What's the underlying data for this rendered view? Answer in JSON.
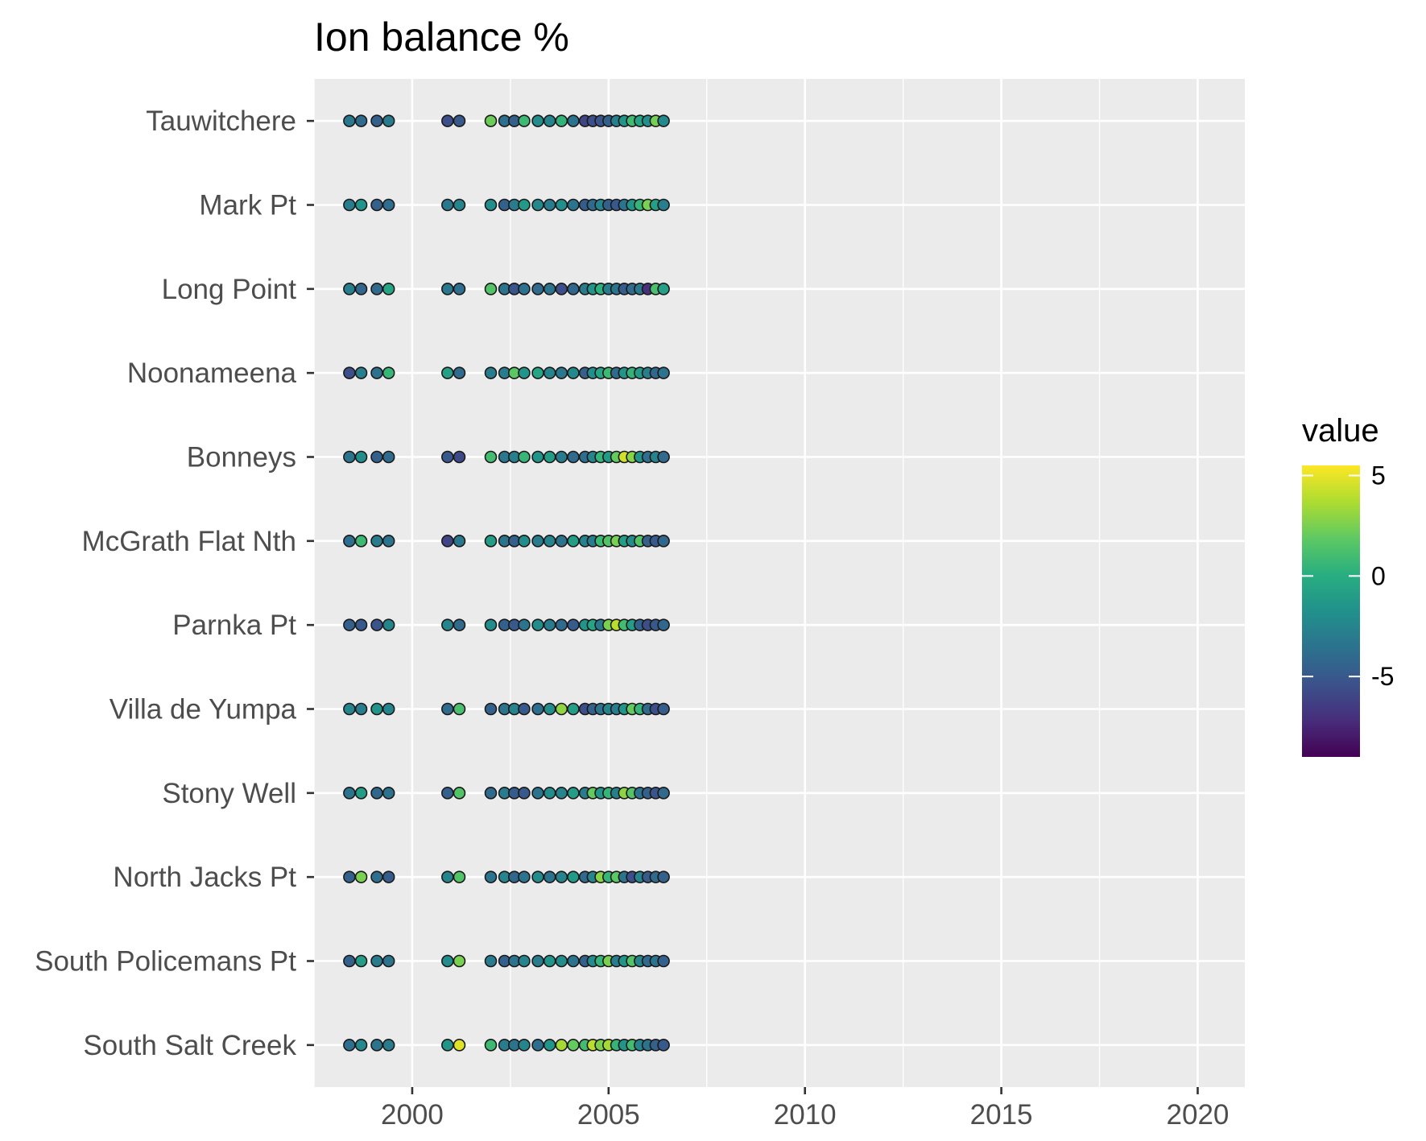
{
  "chart_data": {
    "type": "scatter",
    "title": "Ion balance %",
    "xlabel": "",
    "ylabel": "",
    "xlim": [
      1997.5,
      2021.2
    ],
    "x_ticks": [
      2000,
      2005,
      2010,
      2015,
      2020
    ],
    "x_tick_labels": [
      "2000",
      "2005",
      "2010",
      "2015",
      "2020"
    ],
    "categories": [
      "Tauwitchere",
      "Mark Pt",
      "Long Point",
      "Noonameena",
      "Bonneys",
      "McGrath Flat Nth",
      "Parnka Pt",
      "Villa de Yumpa",
      "Stony Well",
      "North Jacks Pt",
      "South Policemans Pt",
      "South Salt Creek"
    ],
    "grid": true,
    "legend": {
      "title": "value",
      "position": "right",
      "palette": "viridis",
      "min": -9,
      "max": 5.5,
      "ticks": [
        5,
        0,
        -5
      ],
      "tick_labels": [
        "5",
        "0",
        "-5"
      ]
    },
    "colors": {
      "panel_background": "#ebebeb",
      "gridline": "#ffffff",
      "point_outline": "#1a1a1a"
    },
    "x": [
      1998.4,
      1998.7,
      1999.1,
      1999.4,
      2000.9,
      2001.2,
      2002.0,
      2002.35,
      2002.6,
      2002.85,
      2003.2,
      2003.5,
      2003.8,
      2004.1,
      2004.4,
      2004.6,
      2004.8,
      2005.0,
      2005.2,
      2005.4,
      2005.6,
      2005.8,
      2006.0,
      2006.2,
      2006.4
    ],
    "series": [
      {
        "category": "Tauwitchere",
        "values": [
          -3.2,
          -4.0,
          -4.5,
          -3.0,
          -5.5,
          -5.0,
          2.2,
          -3.8,
          -4.6,
          0.8,
          -2.0,
          -2.5,
          0.4,
          -3.5,
          -6.0,
          -5.5,
          -5.2,
          -4.5,
          -2.8,
          -1.5,
          0.9,
          -0.6,
          -1.8,
          2.4,
          -2.2
        ]
      },
      {
        "category": "Mark Pt",
        "values": [
          -3.0,
          -1.5,
          -4.5,
          -3.8,
          -3.2,
          -2.5,
          -2.0,
          -4.5,
          -3.0,
          -1.2,
          -2.2,
          -3.0,
          -1.8,
          -3.5,
          -4.8,
          -4.0,
          -2.5,
          -4.5,
          -5.0,
          -3.5,
          -1.5,
          0.5,
          2.5,
          -0.8,
          -2.8
        ]
      },
      {
        "category": "Long Point",
        "values": [
          -2.8,
          -4.2,
          -4.0,
          -0.5,
          -3.2,
          -3.8,
          1.5,
          -3.5,
          -5.2,
          -3.6,
          -4.0,
          -3.5,
          -5.5,
          -4.2,
          -3.0,
          -1.5,
          0.2,
          -2.8,
          -3.5,
          -4.8,
          -4.0,
          -3.2,
          -7.0,
          1.2,
          -0.8
        ]
      },
      {
        "category": "Noonameena",
        "values": [
          -5.5,
          -2.8,
          -3.6,
          0.6,
          -0.8,
          -4.0,
          -3.0,
          -3.0,
          1.8,
          -1.5,
          -0.5,
          -2.5,
          -3.2,
          -2.2,
          -4.5,
          -1.8,
          -0.6,
          0.8,
          -4.0,
          -1.5,
          0.4,
          -1.2,
          -2.8,
          -4.2,
          -3.5
        ]
      },
      {
        "category": "Bonneys",
        "values": [
          -3.5,
          -2.0,
          -4.5,
          -4.0,
          -5.0,
          -5.8,
          1.0,
          -3.2,
          -2.8,
          0.6,
          -1.5,
          -1.0,
          -3.0,
          -4.0,
          -3.8,
          -2.5,
          0.5,
          -1.2,
          2.0,
          4.5,
          2.8,
          -1.5,
          -3.8,
          -2.5,
          -4.0
        ]
      },
      {
        "category": "McGrath Flat Nth",
        "values": [
          -3.8,
          0.8,
          -3.0,
          -3.5,
          -6.0,
          -3.2,
          -1.0,
          -3.5,
          -4.5,
          -2.0,
          -3.0,
          -2.5,
          -3.5,
          -1.0,
          -2.5,
          -3.0,
          0.8,
          1.5,
          2.5,
          -1.0,
          -2.0,
          1.5,
          -4.5,
          -5.0,
          -4.2
        ]
      },
      {
        "category": "Parnka Pt",
        "values": [
          -4.5,
          -5.0,
          -5.2,
          -2.5,
          -2.5,
          -4.0,
          -2.0,
          -4.5,
          -5.0,
          -3.5,
          -2.0,
          -3.0,
          -4.0,
          -4.8,
          -1.5,
          -0.5,
          -3.2,
          2.5,
          4.0,
          1.0,
          -1.0,
          -4.5,
          -5.5,
          -5.0,
          -4.2
        ]
      },
      {
        "category": "Villa de Yumpa",
        "values": [
          -2.5,
          -3.0,
          -1.5,
          -2.5,
          -4.0,
          1.2,
          -4.5,
          -3.5,
          -2.5,
          -5.0,
          -3.8,
          -2.0,
          3.0,
          -1.0,
          -5.5,
          -4.5,
          -3.5,
          -2.5,
          -3.0,
          -1.5,
          2.0,
          0.5,
          -4.0,
          -5.5,
          -4.8
        ]
      },
      {
        "category": "Stony Well",
        "values": [
          -3.5,
          -1.0,
          -4.2,
          -3.6,
          -4.5,
          1.5,
          -4.0,
          -3.0,
          -4.8,
          -5.0,
          -3.5,
          -2.0,
          -2.5,
          -1.0,
          -3.0,
          2.0,
          -1.5,
          0.5,
          -2.8,
          3.0,
          1.5,
          -3.5,
          -4.5,
          -5.2,
          -4.0
        ]
      },
      {
        "category": "North Jacks Pt",
        "values": [
          -4.5,
          2.5,
          -3.8,
          -4.8,
          -2.5,
          1.5,
          -3.5,
          -2.5,
          -4.2,
          -3.5,
          -2.0,
          -3.5,
          -2.5,
          -1.2,
          -4.0,
          -2.5,
          2.8,
          0.5,
          1.8,
          -3.5,
          -5.5,
          -2.5,
          -4.8,
          -4.0,
          -4.5
        ]
      },
      {
        "category": "South Policemans Pt",
        "values": [
          -4.5,
          -1.0,
          -3.0,
          -3.5,
          -2.0,
          2.5,
          -3.0,
          -4.5,
          -3.5,
          -2.5,
          -3.0,
          -1.5,
          -2.0,
          -3.5,
          -4.5,
          -2.0,
          0.5,
          2.5,
          -3.0,
          -1.5,
          1.5,
          -2.5,
          -4.0,
          -3.5,
          -4.5
        ]
      },
      {
        "category": "South Salt Creek",
        "values": [
          -3.8,
          -2.2,
          -3.5,
          -3.0,
          -1.5,
          4.8,
          0.8,
          -3.0,
          -3.5,
          -2.5,
          -3.8,
          -1.5,
          3.5,
          2.0,
          1.0,
          4.0,
          2.5,
          3.5,
          0.5,
          -1.5,
          1.0,
          -2.5,
          -3.5,
          -4.5,
          -5.0
        ]
      }
    ]
  }
}
